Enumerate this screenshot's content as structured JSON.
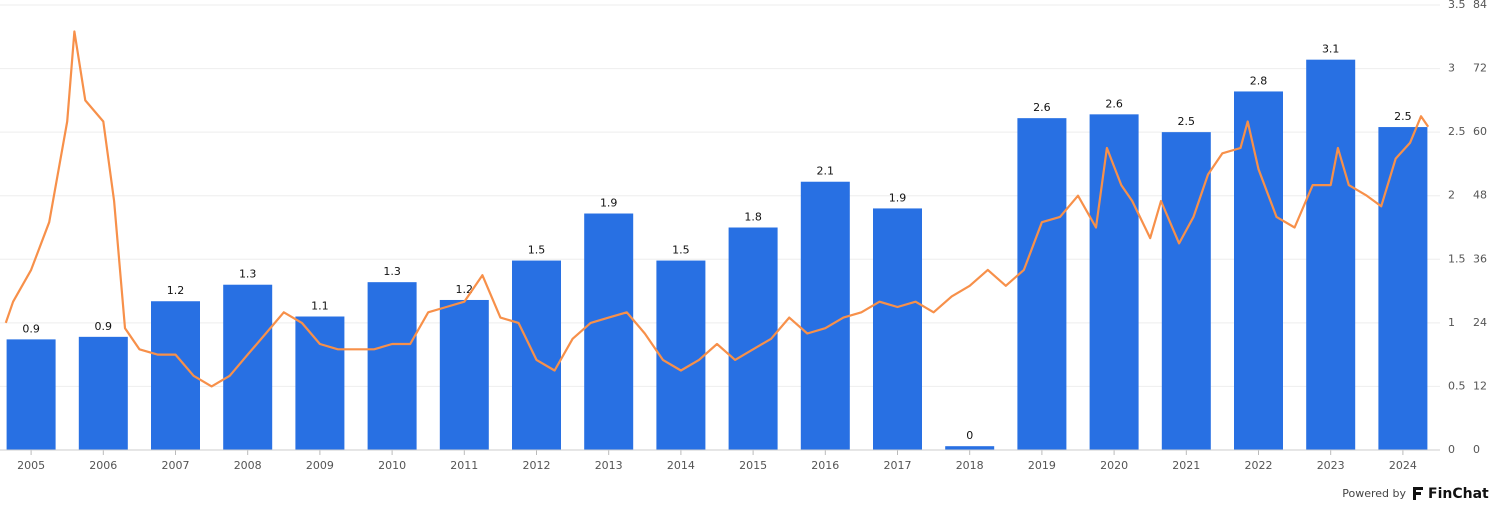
{
  "chart_data": {
    "type": "bar-line",
    "categories": [
      "2005",
      "2006",
      "2007",
      "2008",
      "2009",
      "2010",
      "2011",
      "2012",
      "2013",
      "2014",
      "2015",
      "2016",
      "2017",
      "2018",
      "2019",
      "2020",
      "2021",
      "2022",
      "2023",
      "2024"
    ],
    "series": [
      {
        "type": "bar",
        "color": "#2870e3",
        "values": [
          0.87,
          0.89,
          1.17,
          1.3,
          1.05,
          1.32,
          1.18,
          1.49,
          1.86,
          1.49,
          1.75,
          2.11,
          1.9,
          0.03,
          2.61,
          2.64,
          2.5,
          2.82,
          3.07,
          2.54
        ],
        "value_labels": [
          "0.9",
          "0.9",
          "1.2",
          "1.3",
          "1.1",
          "1.3",
          "1.2",
          "1.5",
          "1.9",
          "1.5",
          "1.8",
          "2.1",
          "1.9",
          "0",
          "2.6",
          "2.6",
          "2.5",
          "2.8",
          "3.1",
          "2.5"
        ]
      },
      {
        "type": "line",
        "color": "#f7904a",
        "axis": "y2",
        "x": [
          2005.15,
          2005.25,
          2005.5,
          2005.75,
          2006.0,
          2006.1,
          2006.25,
          2006.5,
          2006.65,
          2006.8,
          2007.0,
          2007.25,
          2007.5,
          2007.75,
          2008.0,
          2008.25,
          2008.5,
          2008.75,
          2009.0,
          2009.25,
          2009.5,
          2009.75,
          2010.0,
          2010.25,
          2010.5,
          2010.75,
          2011.0,
          2011.25,
          2011.5,
          2011.75,
          2012.0,
          2012.25,
          2012.5,
          2012.75,
          2013.0,
          2013.25,
          2013.5,
          2013.75,
          2014.0,
          2014.25,
          2014.5,
          2014.75,
          2015.0,
          2015.25,
          2015.5,
          2015.75,
          2016.0,
          2016.25,
          2016.5,
          2016.75,
          2017.0,
          2017.25,
          2017.5,
          2017.75,
          2018.0,
          2018.25,
          2018.5,
          2018.75,
          2019.0,
          2019.25,
          2019.5,
          2019.75,
          2020.0,
          2020.25,
          2020.4,
          2020.6,
          2020.75,
          2021.0,
          2021.15,
          2021.4,
          2021.6,
          2021.8,
          2022.0,
          2022.25,
          2022.35,
          2022.5,
          2022.75,
          2023.0,
          2023.25,
          2023.5,
          2023.6,
          2023.75,
          2024.0,
          2024.2,
          2024.4,
          2024.6,
          2024.75,
          2024.85
        ],
        "values": [
          24,
          28,
          34,
          43,
          62,
          79,
          66,
          62,
          47,
          23,
          19,
          18,
          18,
          14,
          12,
          14,
          18,
          22,
          26,
          24,
          20,
          19,
          19,
          19,
          20,
          20,
          26,
          27,
          28,
          33,
          25,
          24,
          17,
          15,
          21,
          24,
          25,
          26,
          22,
          17,
          15,
          17,
          20,
          17,
          19,
          21,
          25,
          22,
          23,
          25,
          26,
          28,
          27,
          28,
          26,
          29,
          31,
          34,
          31,
          34,
          43,
          44,
          48,
          42,
          57,
          50,
          47,
          40,
          47,
          39,
          44,
          52,
          56,
          57,
          62,
          53,
          44,
          42,
          50,
          50,
          57,
          50,
          48,
          46,
          55,
          58,
          63,
          61
        ]
      }
    ],
    "ylim": [
      0,
      3.5
    ],
    "yticks": [
      0,
      0.5,
      1,
      1.5,
      2,
      2.5,
      3,
      3.5
    ],
    "y2lim": [
      0,
      84
    ],
    "y2ticks": [
      0,
      12,
      24,
      36,
      48,
      60,
      72,
      84
    ],
    "grid": true
  },
  "footer": {
    "prefix": "Powered by",
    "brand": "FinChat"
  }
}
